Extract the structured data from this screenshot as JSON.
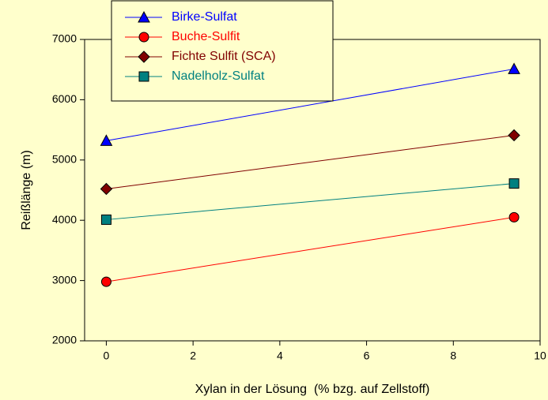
{
  "chart_data": {
    "type": "line",
    "x_label": "Xylan in der Lösung  (% bzg. auf Zellstoff)",
    "y_label": "Reißlänge (m)",
    "xlim": [
      -0.5,
      10
    ],
    "xticks": [
      0,
      2,
      4,
      6,
      8,
      10
    ],
    "ylim": [
      2000,
      7000
    ],
    "yticks": [
      2000,
      3000,
      4000,
      5000,
      6000,
      7000
    ],
    "x": [
      0,
      9.4
    ],
    "legend": "upper left",
    "series": [
      {
        "name": "Birke-Sulfat",
        "color": "#0000ff",
        "marker": "triangle",
        "values": [
          5320,
          6510
        ]
      },
      {
        "name": "Buche-Sulfit",
        "color": "#ff0000",
        "marker": "circle",
        "values": [
          2980,
          4050
        ]
      },
      {
        "name": "Fichte Sulfit (SCA)",
        "color": "#800000",
        "marker": "diamond",
        "values": [
          4520,
          5410
        ]
      },
      {
        "name": "Nadelholz-Sulfat",
        "color": "#008080",
        "marker": "square",
        "values": [
          4010,
          4610
        ]
      }
    ]
  }
}
